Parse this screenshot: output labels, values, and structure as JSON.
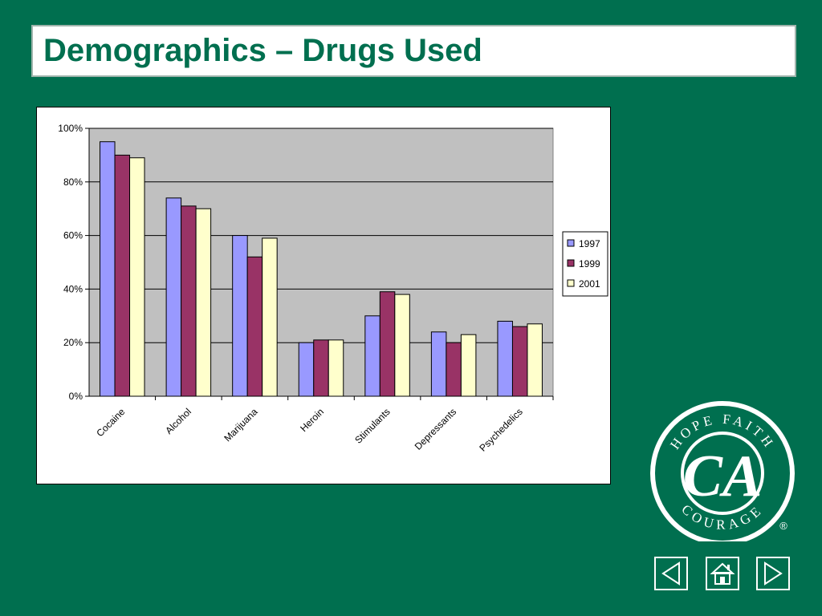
{
  "slide": {
    "title": "Demographics – Drugs Used",
    "background_color": "#006F4F",
    "logo": {
      "top_text": "HOPE   FAITH",
      "bottom_text": "COURAGE",
      "monogram": "CA",
      "registered": "®"
    },
    "nav": {
      "prev_icon": "prev-arrow-icon",
      "home_icon": "home-icon",
      "next_icon": "next-arrow-icon"
    }
  },
  "chart_data": {
    "type": "bar",
    "categories": [
      "Cocaine",
      "Alcohol",
      "Marijuana",
      "Heroin",
      "Stimulants",
      "Depressants",
      "Psychedelics"
    ],
    "series": [
      {
        "name": "1997",
        "values": [
          95,
          74,
          60,
          20,
          30,
          24,
          28
        ],
        "color": "#9999FF"
      },
      {
        "name": "1999",
        "values": [
          90,
          71,
          52,
          21,
          39,
          20,
          26
        ],
        "color": "#993366"
      },
      {
        "name": "2001",
        "values": [
          89,
          70,
          59,
          21,
          38,
          23,
          27
        ],
        "color": "#FFFFCC"
      }
    ],
    "y_ticks": [
      "0%",
      "20%",
      "40%",
      "60%",
      "80%",
      "100%"
    ],
    "ylim": [
      0,
      100
    ],
    "y_unit": "%",
    "grid": true,
    "plot_background": "#C0C0C0",
    "legend_position": "right",
    "title": "",
    "xlabel": "",
    "ylabel": ""
  }
}
